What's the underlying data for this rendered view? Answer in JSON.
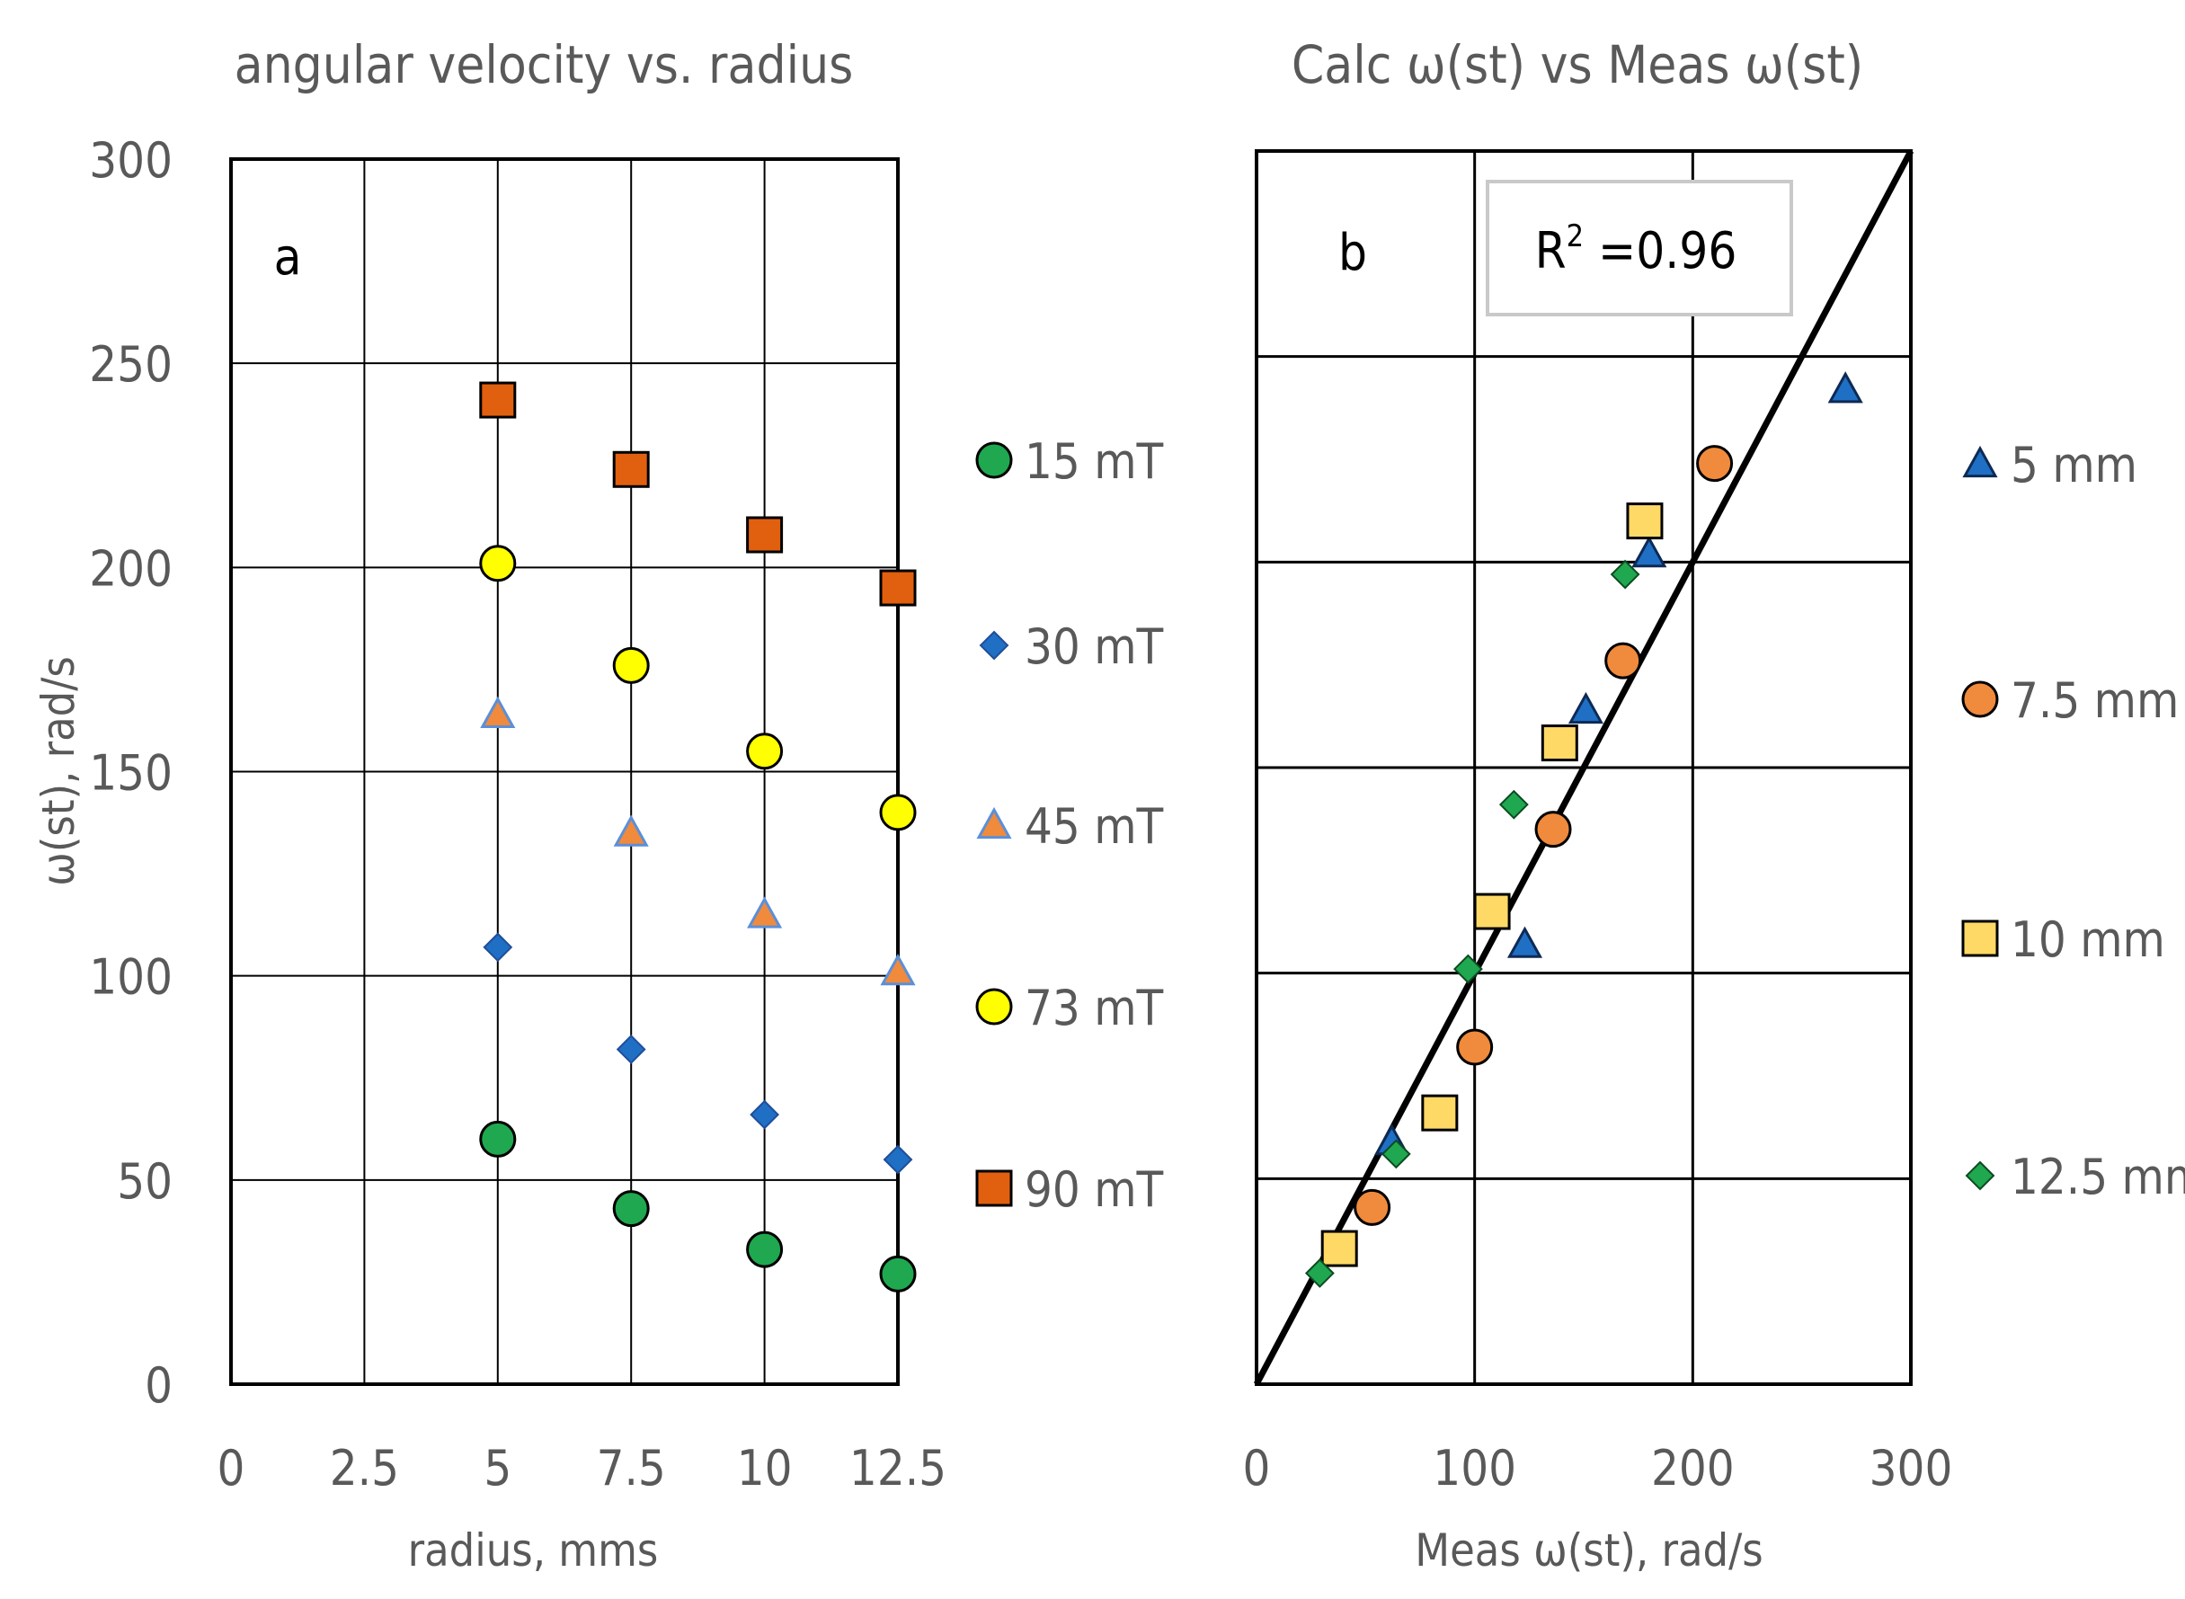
{
  "chart_data": [
    {
      "type": "scatter",
      "panel_label": "a",
      "title": "angular velocity vs. radius",
      "xlabel": "radius, mms",
      "ylabel": "ω(st), rad/s",
      "xlim": [
        0,
        12.5
      ],
      "ylim": [
        0,
        300
      ],
      "xticks": [
        "0",
        "2.5",
        "5",
        "7.5",
        "10",
        "12.5"
      ],
      "yticks": [
        "0",
        "50",
        "100",
        "150",
        "200",
        "250",
        "300"
      ],
      "grid": true,
      "legend_position": "right",
      "x": [
        5,
        7.5,
        10,
        12.5
      ],
      "series": [
        {
          "name": "15 mT",
          "marker": "circle",
          "fill": "#1FA84F",
          "stroke": "#000000",
          "values": [
            60,
            43,
            33,
            27
          ]
        },
        {
          "name": "30 mT",
          "marker": "diamond",
          "fill": "#1F6FC5",
          "stroke": "#1F4E9A",
          "values": [
            107,
            82,
            66,
            55
          ]
        },
        {
          "name": "45 mT",
          "marker": "triangle",
          "fill": "#F08A3C",
          "stroke": "#5B8FD9",
          "values": [
            164,
            135,
            115,
            101
          ]
        },
        {
          "name": "73 mT",
          "marker": "circle",
          "fill": "#FFFF00",
          "stroke": "#000000",
          "values": [
            201,
            176,
            155,
            140
          ]
        },
        {
          "name": "90 mT",
          "marker": "square",
          "fill": "#E0600F",
          "stroke": "#000000",
          "values": [
            241,
            224,
            208,
            195
          ]
        }
      ]
    },
    {
      "type": "scatter",
      "panel_label": "b",
      "title": "Calc ω(st) vs Meas ω(st)",
      "xlabel": "Meas ω(st), rad/s",
      "ylabel": "",
      "xlim": [
        0,
        300
      ],
      "ylim": [
        0,
        300
      ],
      "xticks": [
        "0",
        "100",
        "200",
        "300"
      ],
      "grid": true,
      "legend_position": "right",
      "annotation": {
        "label": "R",
        "sup": "2",
        "value": " =0.96"
      },
      "fit_line": {
        "x": [
          0,
          300
        ],
        "y": [
          0,
          300
        ]
      },
      "series": [
        {
          "name": "5 mm",
          "marker": "triangle",
          "fill": "#1F6FC5",
          "stroke": "#0D2A55",
          "points": [
            [
              62,
              59
            ],
            [
              123,
              107
            ],
            [
              151,
              164
            ],
            [
              180,
              202
            ],
            [
              270,
              242
            ]
          ]
        },
        {
          "name": "7.5 mm",
          "marker": "circle",
          "fill": "#F08A3C",
          "stroke": "#000000",
          "points": [
            [
              53,
              43
            ],
            [
              100,
              82
            ],
            [
              136,
              135
            ],
            [
              168,
              176
            ],
            [
              210,
              224
            ]
          ]
        },
        {
          "name": "10 mm",
          "marker": "square",
          "fill": "#FFD966",
          "stroke": "#000000",
          "points": [
            [
              38,
              33
            ],
            [
              84,
              66
            ],
            [
              108,
              115
            ],
            [
              139,
              156
            ],
            [
              178,
              210
            ]
          ]
        },
        {
          "name": "12.5 mm",
          "marker": "diamond",
          "fill": "#1FA84F",
          "stroke": "#0D4A22",
          "points": [
            [
              29,
              27
            ],
            [
              64,
              56
            ],
            [
              97,
              101
            ],
            [
              118,
              141
            ],
            [
              169,
              197
            ]
          ]
        }
      ]
    }
  ]
}
